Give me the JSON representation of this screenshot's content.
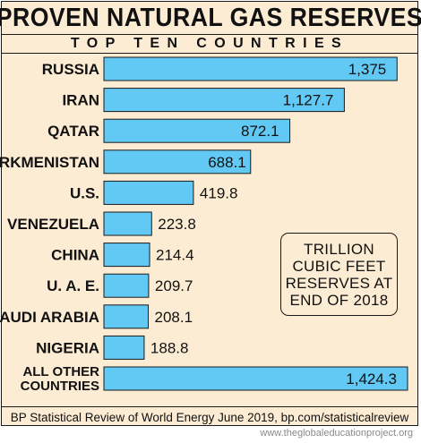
{
  "title": "PROVEN NATURAL GAS RESERVES",
  "subtitle": "TOP TEN COUNTRIES",
  "note": "TRILLION\nCUBIC FEET\nRESERVES AT\nEND OF 2018",
  "source": "BP Statistical Review of World Energy June 2019, bp.com/statisticalreview",
  "watermark": "www.theglobaleducationproject.org",
  "colors": {
    "bar_fill": "#62c8f4",
    "bar_stroke": "#1a1a1a",
    "background": "#fcecd3"
  },
  "chart_data": {
    "type": "bar",
    "orientation": "horizontal",
    "title": "PROVEN NATURAL GAS RESERVES",
    "subtitle": "TOP TEN COUNTRIES",
    "categories": [
      "RUSSIA",
      "IRAN",
      "QATAR",
      "TURKMENISTAN",
      "U.S.",
      "VENEZUELA",
      "CHINA",
      "U. A. E.",
      "SAUDI ARABIA",
      "NIGERIA",
      "ALL OTHER\nCOUNTRIES"
    ],
    "values": [
      1375,
      1127.7,
      872.1,
      688.1,
      419.8,
      223.8,
      214.4,
      209.7,
      208.1,
      188.8,
      1424.3
    ],
    "value_labels": [
      "1,375",
      "1,127.7",
      "872.1",
      "688.1",
      "419.8",
      "223.8",
      "214.4",
      "209.7",
      "208.1",
      "188.8",
      "1,424.3"
    ],
    "xlim": [
      0,
      1424.3
    ],
    "grid": false,
    "legend": "none"
  }
}
